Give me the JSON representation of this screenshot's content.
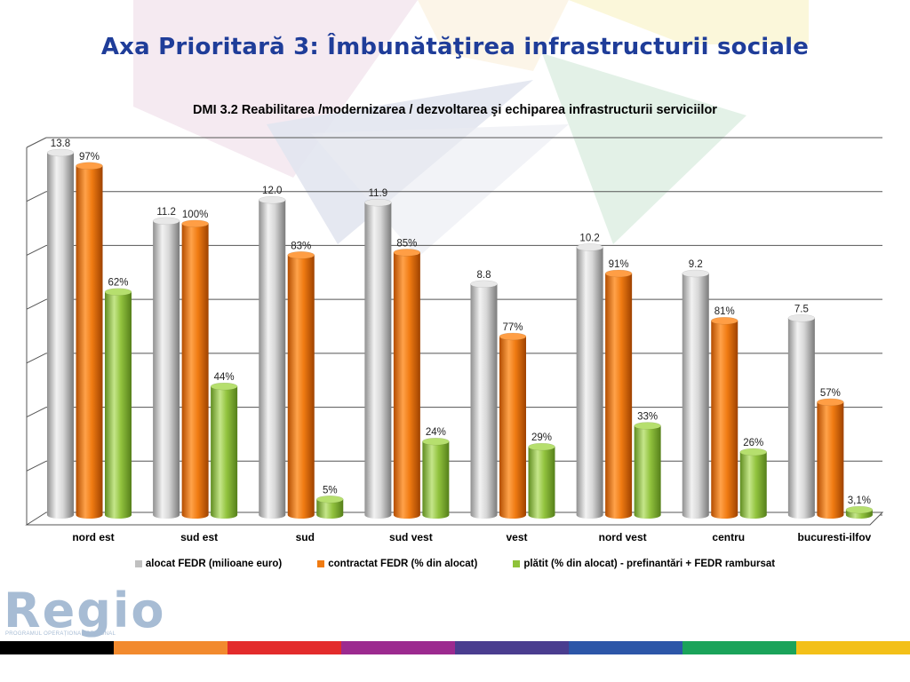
{
  "slide": {
    "title": "Axa Prioritară 3: Îmbunătăţirea infrastructurii sociale",
    "logo_text": "Regio",
    "logo_subtitle": "PROGRAMUL OPERAȚIONAL REGIONAL",
    "stripe_colors": [
      "#000000",
      "#f28a2e",
      "#e32b2b",
      "#9c2a8f",
      "#4a3d8f",
      "#2c56a8",
      "#1aa35a",
      "#f3c018"
    ]
  },
  "chart_data": {
    "type": "bar",
    "title": "DMI 3.2 Reabilitarea /modernizarea / dezvoltarea şi echiparea infrastructurii serviciilor",
    "categories": [
      "nord est",
      "sud est",
      "sud",
      "sud vest",
      "vest",
      "nord vest",
      "centru",
      "bucuresti-ilfov"
    ],
    "ylim": [
      0,
      14
    ],
    "grid": true,
    "legend_position": "bottom",
    "series": [
      {
        "name": "alocat FEDR (milioane euro)",
        "color": "#c9c9c9",
        "values": [
          13.8,
          11.2,
          12.0,
          11.9,
          8.8,
          10.2,
          9.2,
          7.5
        ],
        "labels": [
          "13.8",
          "11.2",
          "12.0",
          "11.9",
          "8.8",
          "10.2",
          "9.2",
          "7.5"
        ]
      },
      {
        "name": "contractat FEDR (% din alocat)",
        "color": "#f07b12",
        "values": [
          13.3,
          11.1,
          9.9,
          10.0,
          6.8,
          9.2,
          7.4,
          4.3
        ],
        "labels": [
          "97%",
          "100%",
          "83%",
          "85%",
          "77%",
          "91%",
          "81%",
          "57%"
        ]
      },
      {
        "name": "plătit (% din alocat) - prefinantări + FEDR rambursat",
        "color": "#8fc23a",
        "values": [
          8.5,
          4.9,
          0.6,
          2.8,
          2.6,
          3.4,
          2.4,
          0.2
        ],
        "labels": [
          "62%",
          "44%",
          "5%",
          "24%",
          "29%",
          "33%",
          "26%",
          "3,1%"
        ]
      }
    ]
  }
}
